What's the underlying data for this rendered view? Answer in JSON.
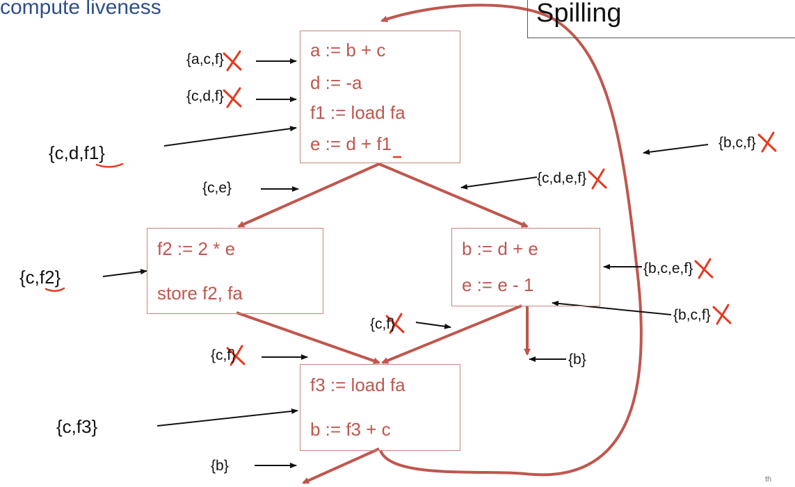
{
  "slide": {
    "heading": "compute liveness",
    "title": "Spilling",
    "corner_mark": "th"
  },
  "blocks": {
    "entry": [
      "a := b + c",
      "d := -a",
      "f1 := load fa",
      "e := d + f1"
    ],
    "left": [
      "f2 := 2 * e",
      "store f2, fa"
    ],
    "right": [
      "b := d + e",
      "e := e - 1"
    ],
    "exit": [
      "f3 := load fa",
      "b := f3 + c"
    ]
  },
  "live_sets": {
    "before_a": "{a,c,f}",
    "before_d": "{c,d,f}",
    "before_e": "{c,d,f1}",
    "entry_out_left": "{c,e}",
    "entry_out_right": "{c,d,e,f}",
    "loop_back_edge": "{b,c,f}",
    "left_block_in": "{c,f2}",
    "right_block_in": "{b,c,e,f}",
    "right_block_mid": "{b,c,f}",
    "right_to_exit": "{c,f}",
    "right_exit_out": "{b}",
    "left_to_exit": "{c,f}",
    "exit_before_b": "{c,f3}",
    "exit_out": "{b}"
  },
  "colors": {
    "heading": "#2e4f8a",
    "statement": "#c0564d",
    "cfg_edge": "#c0564d",
    "strike": "#e5391e",
    "annotation_arrow": "#111111"
  }
}
